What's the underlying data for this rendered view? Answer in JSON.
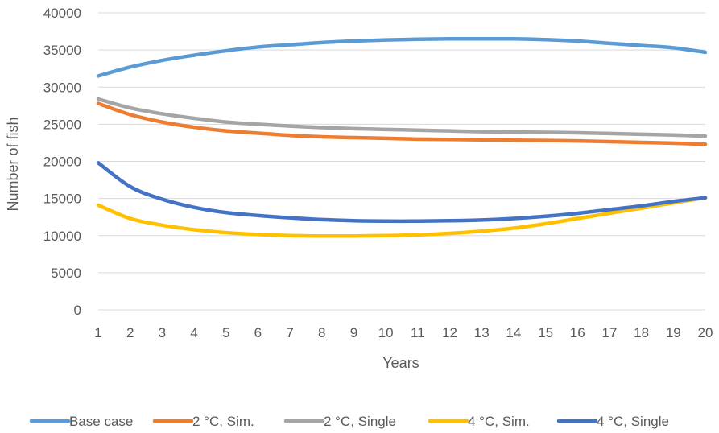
{
  "chart_data": {
    "type": "line",
    "title": "",
    "xlabel": "Years",
    "ylabel": "Number of fish",
    "x": [
      1,
      2,
      3,
      4,
      5,
      6,
      7,
      8,
      9,
      10,
      11,
      12,
      13,
      14,
      15,
      16,
      17,
      18,
      19,
      20
    ],
    "ylim": [
      0,
      40000
    ],
    "yticks": [
      0,
      5000,
      10000,
      15000,
      20000,
      25000,
      30000,
      35000,
      40000
    ],
    "grid": true,
    "legend_position": "bottom",
    "series": [
      {
        "name": "Base case",
        "color": "#5B9BD5",
        "values": [
          31500,
          32700,
          33600,
          34300,
          34900,
          35400,
          35700,
          36000,
          36200,
          36350,
          36450,
          36500,
          36500,
          36500,
          36400,
          36200,
          35900,
          35600,
          35300,
          34700
        ]
      },
      {
        "name": "2 °C, Sim.",
        "color": "#ED7D31",
        "values": [
          27800,
          26300,
          25300,
          24600,
          24100,
          23800,
          23500,
          23300,
          23200,
          23100,
          23000,
          22950,
          22900,
          22850,
          22800,
          22750,
          22650,
          22550,
          22450,
          22300
        ]
      },
      {
        "name": "2 °C, Single",
        "color": "#A5A5A5",
        "values": [
          28400,
          27200,
          26400,
          25800,
          25300,
          25000,
          24750,
          24550,
          24400,
          24300,
          24200,
          24100,
          24000,
          23950,
          23900,
          23850,
          23750,
          23650,
          23550,
          23400
        ]
      },
      {
        "name": "4 °C, Sim.",
        "color": "#FFC000",
        "values": [
          14100,
          12300,
          11400,
          10800,
          10400,
          10150,
          10000,
          9950,
          9950,
          10000,
          10100,
          10300,
          10600,
          11000,
          11600,
          12300,
          13000,
          13700,
          14400,
          15100
        ]
      },
      {
        "name": "4 °C, Single",
        "color": "#4472C4",
        "values": [
          19800,
          16600,
          14900,
          13800,
          13100,
          12700,
          12400,
          12150,
          12000,
          11950,
          11950,
          12000,
          12100,
          12300,
          12600,
          13000,
          13500,
          14000,
          14600,
          15100
        ]
      }
    ]
  }
}
